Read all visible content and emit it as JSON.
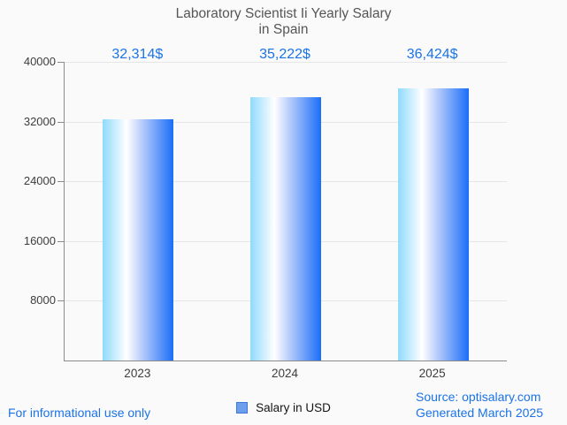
{
  "title": {
    "line1": "Laboratory Scientist Ii Yearly Salary",
    "line2": "in Spain"
  },
  "chart_data": {
    "type": "bar",
    "title": "Laboratory Scientist Ii Yearly Salary in Spain",
    "categories": [
      "2023",
      "2024",
      "2025"
    ],
    "values": [
      32314,
      35222,
      36424
    ],
    "value_labels": [
      "32,314$",
      "35,222$",
      "36,424$"
    ],
    "series_name": "Salary in USD",
    "xlabel": "",
    "ylabel": "",
    "ylim": [
      0,
      40000
    ],
    "yticks": [
      40000,
      32000,
      24000,
      16000,
      8000
    ],
    "ytick_labels": [
      "40000",
      "32000",
      "24000",
      "16000",
      "8000"
    ],
    "grid": true,
    "legend_position": "bottom"
  },
  "legend": {
    "label": "Salary in USD"
  },
  "footer": {
    "disclaimer": "For informational use only",
    "source": "Source: optisalary.com",
    "generated": "Generated March 2025"
  },
  "colors": {
    "accent_blue": "#1a73e8",
    "bar_gradient": [
      "#8fdafd",
      "#ffffff",
      "#c3d4fb",
      "#1b6ef8"
    ],
    "bar_gradient_stops": [
      0,
      34,
      52,
      100
    ],
    "legend_marker_fill": "#6d9eeb",
    "legend_marker_border": "#3c78d8",
    "title_gray": "#565656",
    "axis_gray": "#8c8c8c",
    "grid_gray": "#e7e6e6"
  }
}
